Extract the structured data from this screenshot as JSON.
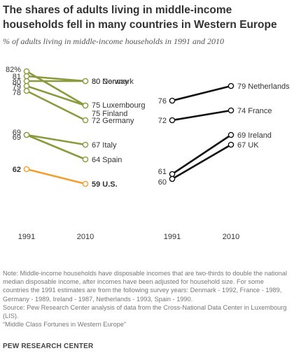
{
  "header": {
    "title_line1": "The shares of adults living in middle-income",
    "title_line2": "households fell in many countries in Western Europe",
    "subtitle": "% of adults living in middle-income households in 1991 and 2010"
  },
  "chart_data": {
    "type": "line",
    "x": [
      "1991",
      "2010"
    ],
    "y_unit_label": "82%",
    "colors": {
      "green": "#8a9a3c",
      "orange": "#f0a030",
      "black": "#111111"
    },
    "panels": [
      {
        "series": [
          {
            "name": "Norway",
            "values": [
              81,
              80
            ],
            "color": "green",
            "start_label": "81",
            "end_label": "80 Norway"
          },
          {
            "name": "Denmark",
            "values": [
              80,
              80
            ],
            "color": "green",
            "start_label": "80",
            "end_label": "80 Denmark"
          },
          {
            "name": "Luxembourg",
            "values": [
              82,
              75
            ],
            "color": "green",
            "start_label": "82%",
            "end_label": "75 Luxembourg"
          },
          {
            "name": "Finland",
            "values": [
              79,
              75
            ],
            "color": "green",
            "start_label": "79",
            "end_label": "75 Finland"
          },
          {
            "name": "Germany",
            "values": [
              78,
              72
            ],
            "color": "green",
            "start_label": "78",
            "end_label": "72 Germany"
          },
          {
            "name": "Italy",
            "values": [
              69,
              67
            ],
            "color": "green",
            "start_label": "69",
            "end_label": "67 Italy"
          },
          {
            "name": "Spain",
            "values": [
              69,
              64
            ],
            "color": "green",
            "start_label": "69",
            "end_label": "64 Spain"
          },
          {
            "name": "U.S.",
            "values": [
              62,
              59
            ],
            "color": "orange",
            "start_label": "62",
            "end_label": "59 U.S.",
            "bold": true
          }
        ]
      },
      {
        "series": [
          {
            "name": "Netherlands",
            "values": [
              76,
              79
            ],
            "color": "black",
            "start_label": "76",
            "end_label": "79 Netherlands"
          },
          {
            "name": "France",
            "values": [
              72,
              74
            ],
            "color": "black",
            "start_label": "72",
            "end_label": "74 France"
          },
          {
            "name": "Ireland",
            "values": [
              61,
              69
            ],
            "color": "black",
            "start_label": "61",
            "end_label": "69 Ireland"
          },
          {
            "name": "UK",
            "values": [
              60,
              67
            ],
            "color": "black",
            "start_label": "60",
            "end_label": "67 UK"
          }
        ]
      }
    ]
  },
  "notes": {
    "note": "Note: Middle-income households have disposable incomes that are two-thirds to double the national median disposable income, after incomes have been adjusted for household size. For some countries the 1991 estimates are from the following survey years: Denmark - 1992, France - 1989, Germany - 1989, Ireland - 1987, Netherlands - 1993, Spain - 1990.",
    "source": "Source: Pew Research Center analysis of data from the Cross-National Data Center in Luxembourg (LIS).",
    "report": "“Middle Class Fortunes in Western Europe”"
  },
  "brand": "PEW RESEARCH CENTER"
}
